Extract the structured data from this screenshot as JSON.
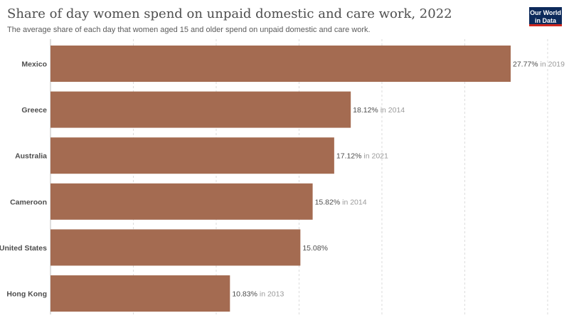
{
  "header": {
    "title": "Share of day women spend on unpaid domestic and care work, 2022",
    "subtitle": "The average share of each day that women aged 15 and older spend on unpaid domestic and care work.",
    "logo_line1": "Our World",
    "logo_line2": "in Data"
  },
  "colors": {
    "bar": "#a46b51",
    "grid": "#dcdcdc",
    "label": "#4d4d4d",
    "value": "#4d4d4d",
    "year": "#9a9a9a"
  },
  "chart_data": {
    "type": "bar",
    "orientation": "horizontal",
    "categories": [
      "Mexico",
      "Greece",
      "Australia",
      "Cameroon",
      "United States",
      "Hong Kong"
    ],
    "values": [
      27.77,
      18.12,
      17.12,
      15.82,
      15.08,
      10.83
    ],
    "value_labels": [
      "27.77%",
      "18.12%",
      "17.12%",
      "15.82%",
      "15.08%",
      "10.83%"
    ],
    "year_notes": [
      "in 2019",
      "in 2014",
      "in 2021",
      "in 2014",
      "",
      "in 2013"
    ],
    "xlim": [
      0,
      30
    ],
    "grid": "vertical dashed",
    "legend": "none"
  }
}
